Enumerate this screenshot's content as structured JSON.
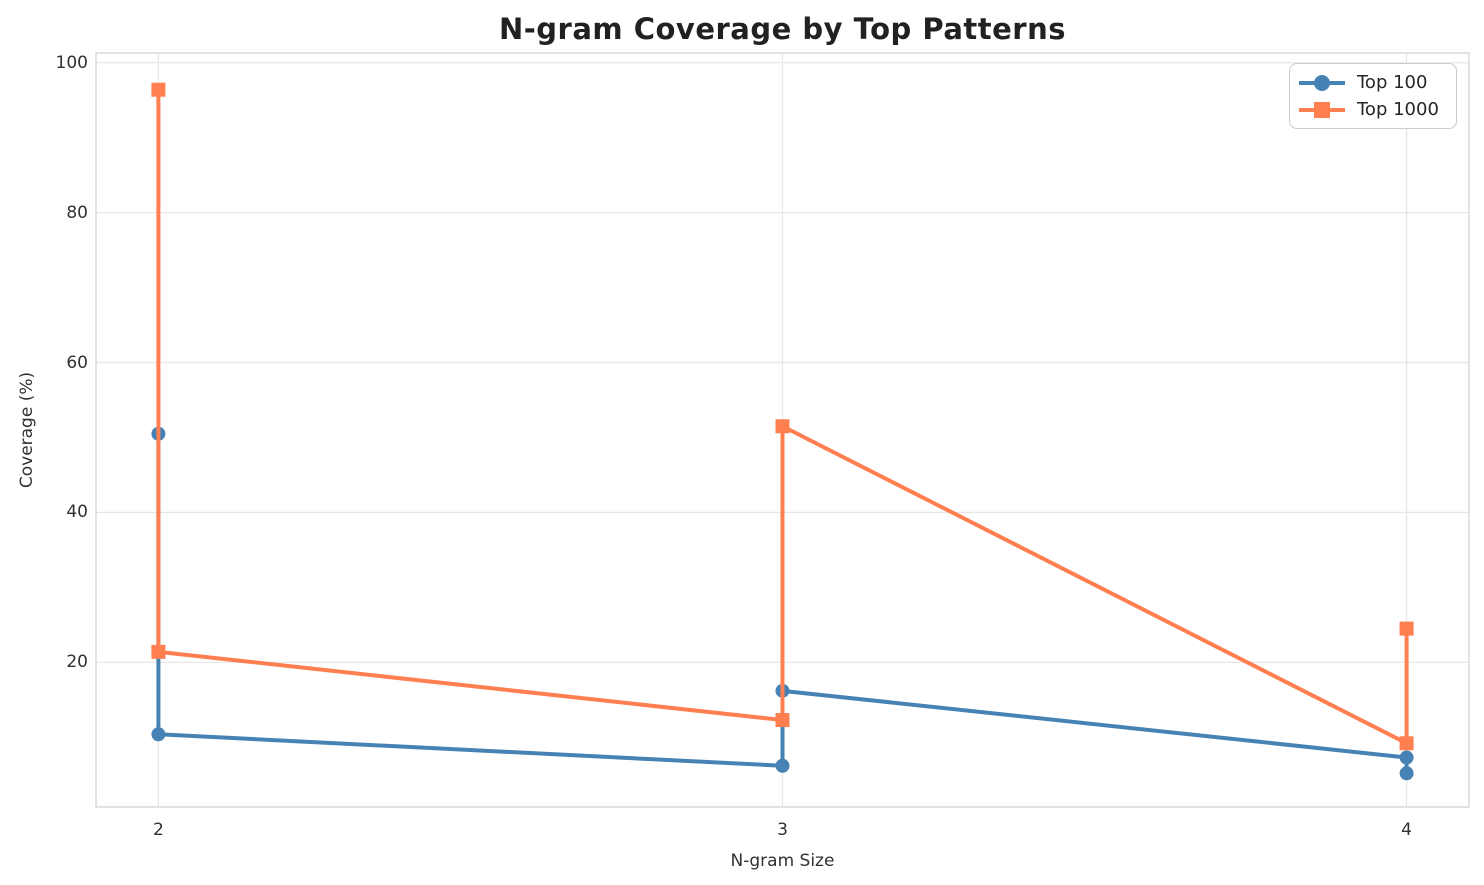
{
  "chart_data": {
    "type": "line",
    "title": "N-gram Coverage by Top Patterns",
    "xlabel": "N-gram Size",
    "ylabel": "Coverage (%)",
    "x_ticks": [
      2,
      3,
      4
    ],
    "y_ticks": [
      20,
      40,
      60,
      80,
      100
    ],
    "xlim": [
      1.9,
      4.1
    ],
    "ylim": [
      0.7,
      101.3
    ],
    "grid": true,
    "legend_position": "upper right",
    "series": [
      {
        "name": "Top 100",
        "color": "#4682B4",
        "marker": "circle",
        "points": [
          [
            2,
            50.5
          ],
          [
            2,
            10.4
          ],
          [
            3,
            6.2
          ],
          [
            3,
            16.2
          ],
          [
            4,
            7.3
          ],
          [
            4,
            5.2
          ]
        ]
      },
      {
        "name": "Top 1000",
        "color": "#FF7F50",
        "marker": "square",
        "points": [
          [
            2,
            96.4
          ],
          [
            2,
            21.4
          ],
          [
            3,
            12.3
          ],
          [
            3,
            51.5
          ],
          [
            4,
            9.2
          ],
          [
            4,
            24.5
          ]
        ]
      }
    ],
    "style": {
      "grid_color": "#e7e7e7",
      "spine_color": "#d4d4d4",
      "line_width": 4,
      "marker_radius": 7
    }
  }
}
